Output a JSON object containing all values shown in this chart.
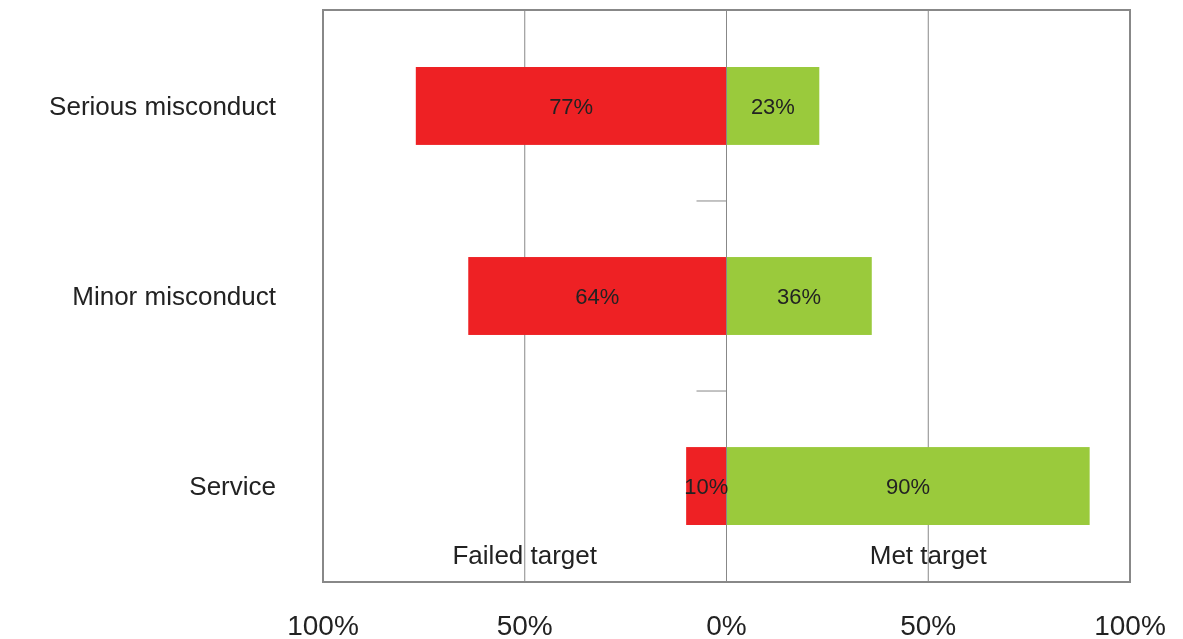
{
  "chart_data": {
    "type": "bar",
    "orientation": "horizontal",
    "categories": [
      "Serious misconduct",
      "Minor misconduct",
      "Service"
    ],
    "series": [
      {
        "name": null,
        "color": "#ee2124",
        "values": [
          77,
          64,
          10
        ],
        "base": [
          -77,
          -64,
          -10
        ],
        "value_labels": [
          "77%",
          "64%",
          "10%"
        ]
      },
      {
        "name": null,
        "color": "#9aca3c",
        "values": [
          23,
          36,
          90
        ],
        "value_labels": [
          "23%",
          "36%",
          "90%"
        ]
      }
    ],
    "xlim": [
      -100,
      100
    ],
    "xticks": [
      {
        "value": -100,
        "label": "100%"
      },
      {
        "value": -50,
        "label": "50%"
      },
      {
        "value": 0,
        "label": "0%"
      },
      {
        "value": 50,
        "label": "50%"
      },
      {
        "value": 100,
        "label": "100%"
      }
    ],
    "grid": "x",
    "annotations": [
      "Failed target",
      "Met target"
    ]
  }
}
